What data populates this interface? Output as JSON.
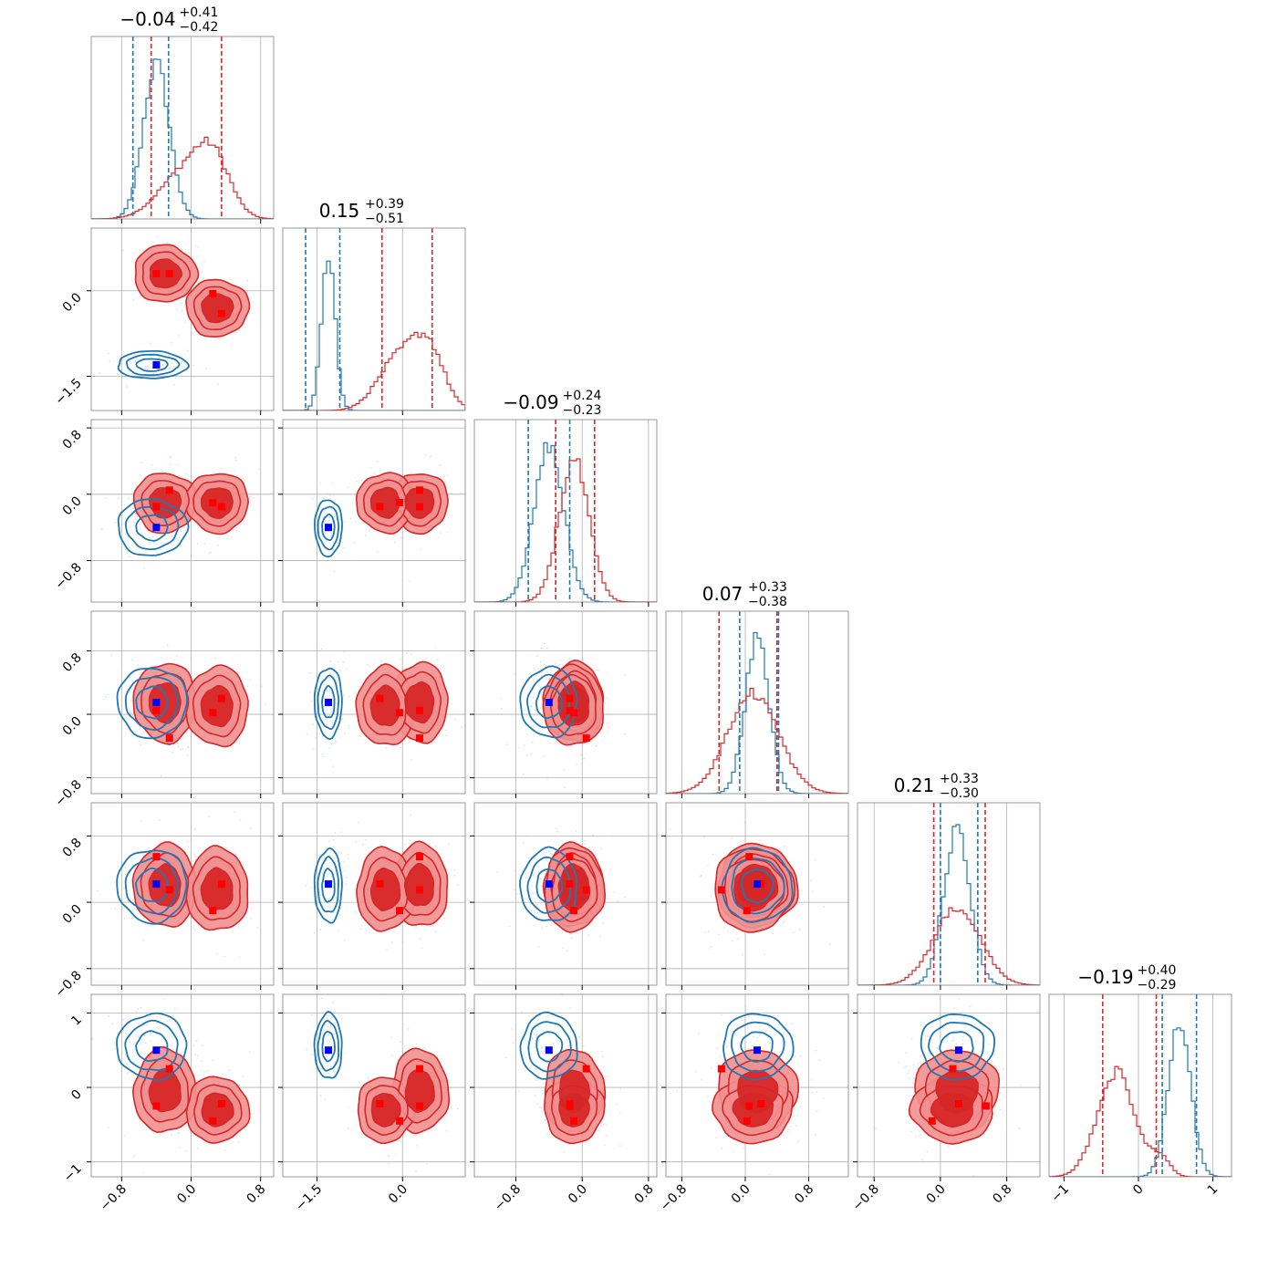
{
  "chart_data": {
    "type": "corner",
    "colors": {
      "red": "#d62728",
      "red_fill_outer": "#f09090",
      "red_fill_inner": "#d62728",
      "blue": "#1f77b4",
      "marker_blue": "#0000ff",
      "marker_red": "#ff0000",
      "grid": "#b0b0b0"
    },
    "params": [
      {
        "range": [
          -1.15,
          0.95
        ],
        "ticks": [
          -0.8,
          0.0,
          0.8
        ],
        "tick_labels": [
          "−0.8",
          "0.0",
          "0.8"
        ],
        "title": {
          "median": "−0.04",
          "plus": "+0.41",
          "minus": "−0.42"
        },
        "red_lines": [
          -0.46,
          0.35
        ],
        "blue_lines": [
          -0.67,
          -0.26
        ],
        "red_modes": [
          {
            "m": -0.1,
            "s": 0.28,
            "w": 0.45
          },
          {
            "m": 0.25,
            "s": 0.2,
            "w": 0.55
          }
        ],
        "blue_modes": [
          {
            "m": -0.4,
            "s": 0.15,
            "w": 1
          }
        ]
      },
      {
        "range": [
          -2.1,
          1.1
        ],
        "ticks": [
          -1.5,
          0.0
        ],
        "tick_labels": [
          "−1.5",
          "0.0"
        ],
        "title": {
          "median": "0.15",
          "plus": "+0.39",
          "minus": "−0.51"
        },
        "red_lines": [
          -0.36,
          0.52
        ],
        "blue_lines": [
          -1.7,
          -1.1
        ],
        "red_modes": [
          {
            "m": -0.1,
            "s": 0.35,
            "w": 0.45
          },
          {
            "m": 0.45,
            "s": 0.28,
            "w": 0.55
          }
        ],
        "blue_modes": [
          {
            "m": -1.3,
            "s": 0.12,
            "w": 1
          }
        ]
      },
      {
        "range": [
          -1.3,
          0.9
        ],
        "ticks": [
          -0.8,
          0.0,
          0.8
        ],
        "tick_labels": [
          "−0.8",
          "0.0",
          "0.8"
        ],
        "title": {
          "median": "−0.09",
          "plus": "+0.24",
          "minus": "−0.23"
        },
        "red_lines": [
          -0.32,
          0.15
        ],
        "blue_lines": [
          -0.65,
          -0.15
        ],
        "red_modes": [
          {
            "m": -0.1,
            "s": 0.18,
            "w": 1
          }
        ],
        "blue_modes": [
          {
            "m": -0.4,
            "s": 0.18,
            "w": 1
          }
        ]
      },
      {
        "range": [
          -1.0,
          1.3
        ],
        "ticks": [
          -0.8,
          0.0,
          0.8
        ],
        "tick_labels": [
          "−0.8",
          "0.0",
          "0.8"
        ],
        "title": {
          "median": "0.07",
          "plus": "+0.33",
          "minus": "−0.38"
        },
        "red_lines": [
          -0.33,
          0.4
        ],
        "blue_lines": [
          -0.07,
          0.42
        ],
        "red_modes": [
          {
            "m": 0.1,
            "s": 0.32,
            "w": 1
          }
        ],
        "blue_modes": [
          {
            "m": 0.15,
            "s": 0.15,
            "w": 1
          }
        ]
      },
      {
        "range": [
          -1.0,
          1.2
        ],
        "ticks": [
          -0.8,
          0.0,
          0.8
        ],
        "tick_labels": [
          "−0.8",
          "0.0",
          "0.8"
        ],
        "title": {
          "median": "0.21",
          "plus": "+0.33",
          "minus": "−0.30"
        },
        "red_lines": [
          -0.08,
          0.54
        ],
        "blue_lines": [
          0.0,
          0.45
        ],
        "red_modes": [
          {
            "m": 0.2,
            "s": 0.28,
            "w": 1
          }
        ],
        "blue_modes": [
          {
            "m": 0.2,
            "s": 0.16,
            "w": 1
          }
        ]
      },
      {
        "range": [
          -1.2,
          1.25
        ],
        "ticks": [
          -1,
          0,
          1
        ],
        "tick_labels": [
          "−1",
          "0",
          "1"
        ],
        "title": {
          "median": "−0.19",
          "plus": "+0.40",
          "minus": "−0.29"
        },
        "red_lines": [
          -0.48,
          0.24
        ],
        "blue_lines": [
          0.32,
          0.78
        ],
        "red_modes": [
          {
            "m": -0.3,
            "s": 0.25,
            "w": 0.85
          },
          {
            "m": 0.3,
            "s": 0.12,
            "w": 0.15
          }
        ],
        "blue_modes": [
          {
            "m": 0.55,
            "s": 0.15,
            "w": 1
          }
        ]
      }
    ],
    "markers": [
      {
        "blue": [
          -0.4,
          -1.3,
          -0.4,
          0.15,
          0.22,
          0.5
        ],
        "red": [
          [
            -0.4,
            0.3,
            -0.15,
            0.05,
            0.55,
            -0.25
          ],
          [
            -0.25,
            0.3,
            0.05,
            -0.3,
            0.15,
            0.25
          ],
          [
            0.25,
            -0.05,
            -0.1,
            0.02,
            -0.1,
            -0.45
          ],
          [
            0.35,
            -0.4,
            -0.15,
            0.2,
            0.22,
            -0.22
          ]
        ]
      }
    ],
    "red_clusters": [
      {
        "c": [
          -0.3,
          0.3,
          -0.1,
          0.15,
          0.2,
          -0.05
        ],
        "s": [
          0.18,
          0.25,
          0.18,
          0.25,
          0.25,
          0.28
        ]
      },
      {
        "c": [
          0.3,
          -0.3,
          -0.1,
          0.1,
          0.15,
          -0.3
        ],
        "s": [
          0.18,
          0.25,
          0.18,
          0.25,
          0.25,
          0.22
        ]
      }
    ],
    "blue_cluster": {
      "c": [
        -0.45,
        -1.3,
        -0.4,
        0.15,
        0.2,
        0.55
      ],
      "s": [
        0.2,
        0.12,
        0.17,
        0.22,
        0.22,
        0.22
      ]
    }
  }
}
